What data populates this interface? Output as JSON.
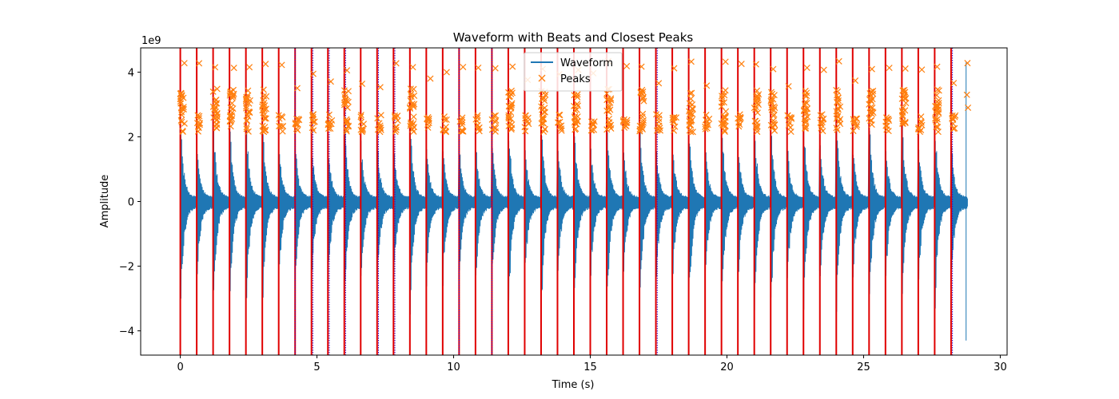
{
  "chart_data": {
    "type": "line",
    "title": "Waveform with Beats and Closest Peaks",
    "xlabel": "Time (s)",
    "ylabel": "Amplitude",
    "y_offset_label": "1e9",
    "xlim": [
      -1.45,
      30.25
    ],
    "ylim": [
      -4750000000.0,
      4750000000.0
    ],
    "x_ticks": [
      0,
      5,
      10,
      15,
      20,
      25,
      30
    ],
    "y_ticks": [
      -4,
      -2,
      0,
      2,
      4
    ],
    "grid": false,
    "legend": {
      "placement": "upper-center",
      "entries": [
        "Waveform",
        "Peaks"
      ]
    },
    "colors": {
      "waveform": "#1f77b4",
      "peaks": "#ff7f0e",
      "beats": "#e00000",
      "closest": "#3a00c8"
    },
    "waveform": {
      "name": "Waveform",
      "duration": 28.8,
      "typical_max": 2300000000.0,
      "typical_min": -3000000000.0
    },
    "peaks_marker": "x",
    "beats": [
      0.0,
      0.6,
      1.2,
      1.8,
      2.4,
      3.0,
      3.6,
      4.2,
      4.8,
      5.4,
      6.0,
      6.6,
      7.2,
      7.8,
      8.4,
      9.0,
      9.6,
      10.2,
      10.8,
      11.4,
      12.0,
      12.6,
      13.2,
      13.8,
      14.4,
      15.0,
      15.6,
      16.2,
      16.8,
      17.4,
      18.0,
      18.6,
      19.2,
      19.8,
      20.4,
      21.0,
      21.6,
      22.2,
      22.8,
      23.4,
      24.0,
      24.6,
      25.2,
      25.8,
      26.4,
      27.0,
      27.6,
      28.2
    ],
    "closest_peaks": [
      4.2,
      4.85,
      5.45,
      6.05,
      7.25,
      7.85,
      10.2,
      11.4,
      17.45,
      28.25
    ]
  }
}
